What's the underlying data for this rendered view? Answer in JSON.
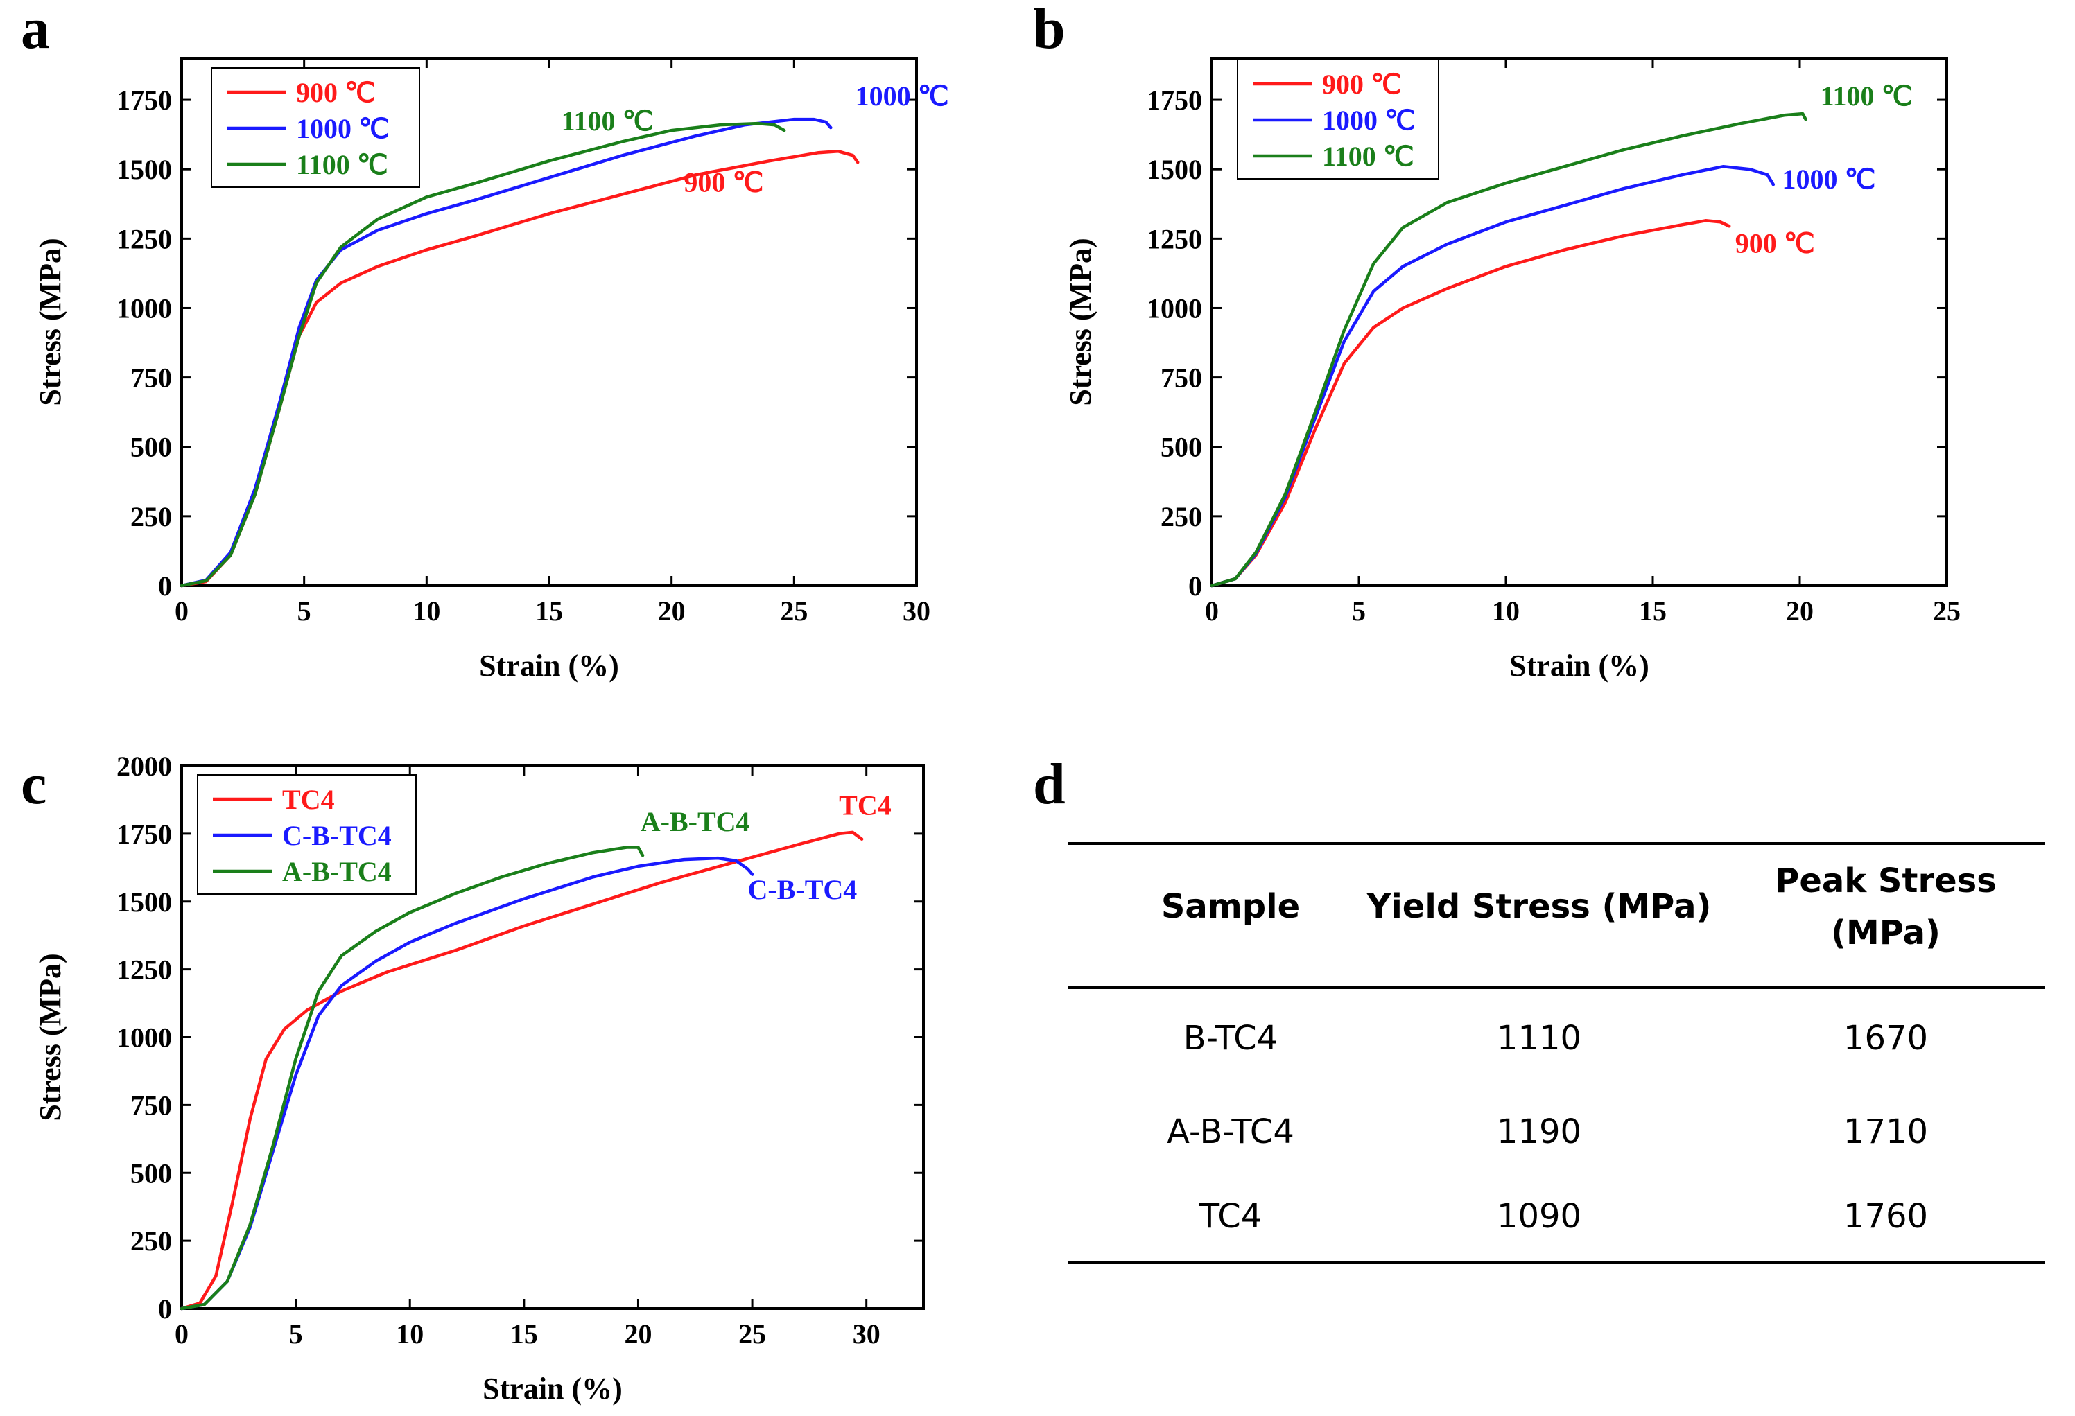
{
  "panel_labels": {
    "a": "a",
    "b": "b",
    "c": "c",
    "d": "d"
  },
  "colors": {
    "red": "#ff1a1a",
    "blue": "#1a1aff",
    "green": "#1a7f1a",
    "axis": "#000000"
  },
  "chart_data": [
    {
      "id": "a",
      "type": "line",
      "xlabel": "Strain (%)",
      "ylabel": "Stress (MPa)",
      "xlim": [
        0,
        30
      ],
      "ylim": [
        0,
        1900
      ],
      "xticks": [
        0,
        5,
        10,
        15,
        20,
        25,
        30
      ],
      "yticks": [
        0,
        250,
        500,
        750,
        1000,
        1250,
        1500,
        1750
      ],
      "legend": {
        "placement": "top-left",
        "entries": [
          "900 ℃",
          "1000 ℃",
          "1100 ℃"
        ]
      },
      "series": [
        {
          "name": "900 ℃",
          "color": "#ff1a1a",
          "points": [
            [
              0,
              0
            ],
            [
              1,
              15
            ],
            [
              2,
              110
            ],
            [
              3,
              330
            ],
            [
              4,
              640
            ],
            [
              4.8,
              900
            ],
            [
              5.5,
              1020
            ],
            [
              6.5,
              1090
            ],
            [
              8,
              1150
            ],
            [
              10,
              1210
            ],
            [
              12,
              1260
            ],
            [
              15,
              1340
            ],
            [
              18,
              1410
            ],
            [
              21,
              1480
            ],
            [
              24,
              1530
            ],
            [
              26,
              1560
            ],
            [
              26.8,
              1565
            ],
            [
              27.4,
              1550
            ],
            [
              27.6,
              1525
            ]
          ]
        },
        {
          "name": "1000 ℃",
          "color": "#1a1aff",
          "points": [
            [
              0,
              0
            ],
            [
              1,
              20
            ],
            [
              2,
              120
            ],
            [
              3,
              350
            ],
            [
              4,
              660
            ],
            [
              4.8,
              930
            ],
            [
              5.5,
              1100
            ],
            [
              6.5,
              1210
            ],
            [
              8,
              1280
            ],
            [
              10,
              1340
            ],
            [
              12,
              1390
            ],
            [
              15,
              1470
            ],
            [
              18,
              1550
            ],
            [
              21,
              1620
            ],
            [
              23,
              1660
            ],
            [
              25,
              1680
            ],
            [
              25.8,
              1680
            ],
            [
              26.3,
              1670
            ],
            [
              26.5,
              1650
            ]
          ]
        },
        {
          "name": "1100 ℃",
          "color": "#1a7f1a",
          "points": [
            [
              0,
              0
            ],
            [
              1,
              18
            ],
            [
              2,
              110
            ],
            [
              3,
              330
            ],
            [
              4,
              640
            ],
            [
              4.8,
              900
            ],
            [
              5.5,
              1090
            ],
            [
              6.5,
              1220
            ],
            [
              8,
              1320
            ],
            [
              10,
              1400
            ],
            [
              12,
              1450
            ],
            [
              15,
              1530
            ],
            [
              18,
              1600
            ],
            [
              20,
              1640
            ],
            [
              22,
              1660
            ],
            [
              23.5,
              1665
            ],
            [
              24.2,
              1660
            ],
            [
              24.6,
              1640
            ]
          ]
        }
      ],
      "annotations": [
        {
          "text": "1100 ℃",
          "color": "#1a7f1a",
          "x": 15.5,
          "y": 1640
        },
        {
          "text": "1000 ℃",
          "color": "#1a1aff",
          "x": 27.5,
          "y": 1730
        },
        {
          "text": "900 ℃",
          "color": "#ff1a1a",
          "x": 20.5,
          "y": 1420
        }
      ]
    },
    {
      "id": "b",
      "type": "line",
      "xlabel": "Strain (%)",
      "ylabel": "Stress (MPa)",
      "xlim": [
        0,
        25
      ],
      "ylim": [
        0,
        1900
      ],
      "xticks": [
        0,
        5,
        10,
        15,
        20,
        25
      ],
      "yticks": [
        0,
        250,
        500,
        750,
        1000,
        1250,
        1500,
        1750
      ],
      "legend": {
        "placement": "top-left",
        "entries": [
          "900 ℃",
          "1000 ℃",
          "1100 ℃"
        ]
      },
      "series": [
        {
          "name": "900 ℃",
          "color": "#ff1a1a",
          "points": [
            [
              0,
              0
            ],
            [
              0.8,
              25
            ],
            [
              1.5,
              110
            ],
            [
              2.5,
              300
            ],
            [
              3.5,
              560
            ],
            [
              4.5,
              800
            ],
            [
              5.5,
              930
            ],
            [
              6.5,
              1000
            ],
            [
              8,
              1070
            ],
            [
              10,
              1150
            ],
            [
              12,
              1210
            ],
            [
              14,
              1260
            ],
            [
              16,
              1300
            ],
            [
              16.8,
              1315
            ],
            [
              17.3,
              1310
            ],
            [
              17.6,
              1295
            ]
          ]
        },
        {
          "name": "1000 ℃",
          "color": "#1a1aff",
          "points": [
            [
              0,
              0
            ],
            [
              0.8,
              25
            ],
            [
              1.5,
              115
            ],
            [
              2.5,
              320
            ],
            [
              3.5,
              600
            ],
            [
              4.5,
              880
            ],
            [
              5.5,
              1060
            ],
            [
              6.5,
              1150
            ],
            [
              8,
              1230
            ],
            [
              10,
              1310
            ],
            [
              12,
              1370
            ],
            [
              14,
              1430
            ],
            [
              16,
              1480
            ],
            [
              17.4,
              1510
            ],
            [
              18.3,
              1500
            ],
            [
              18.9,
              1480
            ],
            [
              19.1,
              1445
            ]
          ]
        },
        {
          "name": "1100 ℃",
          "color": "#1a7f1a",
          "points": [
            [
              0,
              0
            ],
            [
              0.8,
              25
            ],
            [
              1.5,
              120
            ],
            [
              2.5,
              330
            ],
            [
              3.5,
              620
            ],
            [
              4.5,
              920
            ],
            [
              5.5,
              1160
            ],
            [
              6.5,
              1290
            ],
            [
              8,
              1380
            ],
            [
              10,
              1450
            ],
            [
              12,
              1510
            ],
            [
              14,
              1570
            ],
            [
              16,
              1620
            ],
            [
              18,
              1665
            ],
            [
              19.5,
              1695
            ],
            [
              20.1,
              1700
            ],
            [
              20.2,
              1680
            ]
          ]
        }
      ],
      "annotations": [
        {
          "text": "1100 ℃",
          "color": "#1a7f1a",
          "x": 20.7,
          "y": 1730
        },
        {
          "text": "1000 ℃",
          "color": "#1a1aff",
          "x": 19.4,
          "y": 1430
        },
        {
          "text": "900 ℃",
          "color": "#ff1a1a",
          "x": 17.8,
          "y": 1200
        }
      ]
    },
    {
      "id": "c",
      "type": "line",
      "xlabel": "Strain (%)",
      "ylabel": "Stress (MPa)",
      "xlim": [
        0,
        32.5
      ],
      "ylim": [
        0,
        2000
      ],
      "xticks": [
        0,
        5,
        10,
        15,
        20,
        25,
        30
      ],
      "yticks": [
        0,
        250,
        500,
        750,
        1000,
        1250,
        1500,
        1750,
        2000
      ],
      "legend": {
        "placement": "top-left",
        "entries": [
          "TC4",
          "C-B-TC4",
          "A-B-TC4"
        ]
      },
      "series": [
        {
          "name": "TC4",
          "color": "#ff1a1a",
          "points": [
            [
              0,
              0
            ],
            [
              0.8,
              20
            ],
            [
              1.5,
              120
            ],
            [
              2.2,
              380
            ],
            [
              3,
              700
            ],
            [
              3.7,
              920
            ],
            [
              4.5,
              1030
            ],
            [
              5.5,
              1100
            ],
            [
              7,
              1170
            ],
            [
              9,
              1240
            ],
            [
              12,
              1320
            ],
            [
              15,
              1410
            ],
            [
              18,
              1490
            ],
            [
              21,
              1570
            ],
            [
              24,
              1640
            ],
            [
              27,
              1710
            ],
            [
              28.8,
              1750
            ],
            [
              29.4,
              1755
            ],
            [
              29.8,
              1730
            ]
          ]
        },
        {
          "name": "C-B-TC4",
          "color": "#1a1aff",
          "points": [
            [
              0,
              0
            ],
            [
              1,
              15
            ],
            [
              2,
              100
            ],
            [
              3,
              300
            ],
            [
              4,
              580
            ],
            [
              5,
              860
            ],
            [
              6,
              1080
            ],
            [
              7,
              1190
            ],
            [
              8.5,
              1280
            ],
            [
              10,
              1350
            ],
            [
              12,
              1420
            ],
            [
              15,
              1510
            ],
            [
              18,
              1590
            ],
            [
              20,
              1630
            ],
            [
              22,
              1655
            ],
            [
              23.5,
              1660
            ],
            [
              24.3,
              1650
            ],
            [
              24.8,
              1620
            ],
            [
              25,
              1600
            ]
          ]
        },
        {
          "name": "A-B-TC4",
          "color": "#1a7f1a",
          "points": [
            [
              0,
              0
            ],
            [
              1,
              15
            ],
            [
              2,
              100
            ],
            [
              3,
              310
            ],
            [
              4,
              600
            ],
            [
              5,
              920
            ],
            [
              6,
              1170
            ],
            [
              7,
              1300
            ],
            [
              8.5,
              1390
            ],
            [
              10,
              1460
            ],
            [
              12,
              1530
            ],
            [
              14,
              1590
            ],
            [
              16,
              1640
            ],
            [
              18,
              1680
            ],
            [
              19.5,
              1700
            ],
            [
              20,
              1700
            ],
            [
              20.2,
              1670
            ]
          ]
        }
      ],
      "annotations": [
        {
          "text": "A-B-TC4",
          "color": "#1a7f1a",
          "x": 20.1,
          "y": 1760
        },
        {
          "text": "TC4",
          "color": "#ff1a1a",
          "x": 28.8,
          "y": 1820
        },
        {
          "text": "C-B-TC4",
          "color": "#1a1aff",
          "x": 24.8,
          "y": 1510
        }
      ]
    }
  ],
  "table": {
    "columns": [
      "Sample",
      "Yield Stress (MPa)",
      [
        "Peak",
        "Stress",
        "(MPa)"
      ]
    ],
    "peak_header_line1": "Peak Stress",
    "peak_header_line2": "(MPa)",
    "rows": [
      [
        "B-TC4",
        "1110",
        "1670"
      ],
      [
        "A-B-TC4",
        "1190",
        "1710"
      ],
      [
        "TC4",
        "1090",
        "1760"
      ]
    ]
  }
}
